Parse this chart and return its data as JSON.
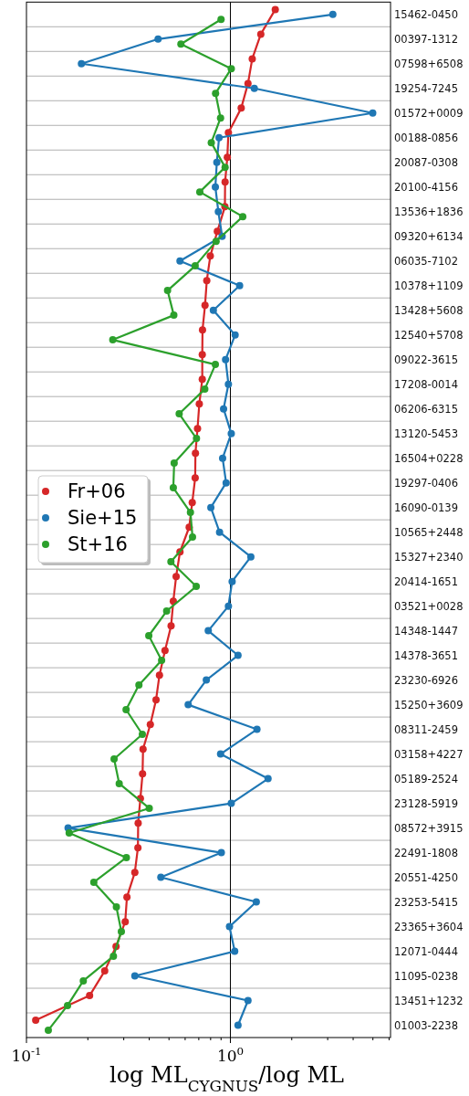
{
  "chart_data": {
    "type": "line",
    "orientation": "horizontal",
    "xlabel": "log ML$_{CYGNUS}$/log ML",
    "log": "x",
    "xlim": [
      0.1,
      6.1
    ],
    "xticks": [
      {
        "value": 0.1,
        "label": "10$^{-1}$"
      },
      {
        "value": 0.2,
        "label": null
      },
      {
        "value": 0.3,
        "label": null
      },
      {
        "value": 0.4,
        "label": null
      },
      {
        "value": 0.5,
        "label": null
      },
      {
        "value": 0.6,
        "label": null
      },
      {
        "value": 0.7,
        "label": null
      },
      {
        "value": 0.8,
        "label": null
      },
      {
        "value": 0.9,
        "label": null
      },
      {
        "value": 1,
        "label": "10$^{0}$"
      },
      {
        "value": 2,
        "label": null
      },
      {
        "value": 3,
        "label": null
      },
      {
        "value": 4,
        "label": null
      },
      {
        "value": 5,
        "label": null
      },
      {
        "value": 6,
        "label": null
      }
    ],
    "categories": [
      "15462-0450",
      "00397-1312",
      "07598+6508",
      "19254-7245",
      "01572+0009",
      "00188-0856",
      "20087-0308",
      "20100-4156",
      "13536+1836",
      "09320+6134",
      "06035-7102",
      "10378+1109",
      "13428+5608",
      "12540+5708",
      "09022-3615",
      "17208-0014",
      "06206-6315",
      "13120-5453",
      "16504+0228",
      "19297-0406",
      "16090-0139",
      "10565+2448",
      "15327+2340",
      "20414-1651",
      "03521+0028",
      "14348-1447",
      "14378-3651",
      "23230-6926",
      "15250+3609",
      "08311-2459",
      "03158+4227",
      "05189-2524",
      "23128-5919",
      "08572+3915",
      "22491-1808",
      "20551-4250",
      "23253-5415",
      "23365+3604",
      "12071-0444",
      "11095-0238",
      "13451+1232",
      "01003-2238"
    ],
    "series": [
      {
        "name": "Fr+06",
        "color": "#d62728",
        "values": [
          1.66,
          1.41,
          1.28,
          1.22,
          1.13,
          0.978,
          0.966,
          0.942,
          0.94,
          0.863,
          0.797,
          0.766,
          0.751,
          0.73,
          0.728,
          0.728,
          0.704,
          0.69,
          0.674,
          0.672,
          0.65,
          0.628,
          0.566,
          0.542,
          0.525,
          0.512,
          0.478,
          0.449,
          0.432,
          0.405,
          0.373,
          0.371,
          0.362,
          0.353,
          0.352,
          0.34,
          0.311,
          0.305,
          0.275,
          0.242,
          0.204,
          0.111
        ]
      },
      {
        "name": "Sie+15",
        "color": "#1f77b4",
        "values": [
          3.18,
          0.442,
          0.186,
          1.31,
          4.99,
          0.88,
          0.858,
          0.844,
          0.873,
          0.911,
          0.566,
          1.11,
          0.825,
          1.055,
          0.947,
          0.978,
          0.926,
          1.01,
          0.916,
          0.953,
          0.802,
          0.885,
          1.26,
          1.02,
          0.978,
          0.779,
          1.09,
          0.762,
          0.621,
          1.35,
          0.895,
          1.53,
          1.01,
          0.16,
          0.903,
          0.456,
          1.34,
          0.99,
          1.05,
          0.34,
          1.22,
          1.09
        ]
      },
      {
        "name": "St+16",
        "color": "#2ca02c",
        "values": [
          0.9,
          0.572,
          1.01,
          0.846,
          0.895,
          0.806,
          0.942,
          0.708,
          1.15,
          0.851,
          0.672,
          0.492,
          0.528,
          0.265,
          0.844,
          0.749,
          0.561,
          0.682,
          0.53,
          0.525,
          0.637,
          0.652,
          0.511,
          0.68,
          0.487,
          0.398,
          0.46,
          0.356,
          0.308,
          0.37,
          0.269,
          0.285,
          0.4,
          0.162,
          0.309,
          0.214,
          0.276,
          0.292,
          0.267,
          0.19,
          0.159,
          0.128
        ]
      }
    ],
    "ref_lines": [
      {
        "axis": "x",
        "value": 1,
        "color": "#000000"
      }
    ],
    "grid": "y",
    "legend": "left",
    "marker": "circle",
    "line_style": "solid"
  }
}
